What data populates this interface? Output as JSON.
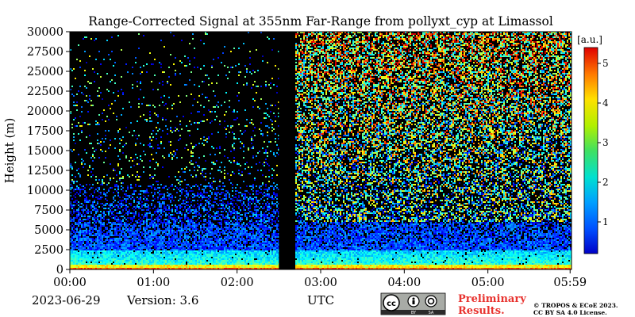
{
  "chart_data": {
    "type": "heatmap",
    "title": "Range-Corrected Signal at 355nm Far-Range from pollyxt_cyp at Limassol",
    "xlabel": "UTC",
    "ylabel": "Height (m)",
    "x_ticks": [
      "00:00",
      "01:00",
      "02:00",
      "03:00",
      "04:00",
      "05:00",
      "05:59"
    ],
    "y_ticks": [
      "0",
      "2500",
      "5000",
      "7500",
      "10000",
      "12500",
      "15000",
      "17500",
      "20000",
      "22500",
      "25000",
      "27500",
      "30000"
    ],
    "xlim_hours": [
      0,
      6.0
    ],
    "ylim": [
      0,
      30000
    ],
    "no_data_gap_hours": [
      2.5,
      2.68
    ],
    "colorbar": {
      "label": "[a.u.]",
      "ticks": [
        "1",
        "2",
        "3",
        "4",
        "5"
      ],
      "range": [
        0.2,
        5.4
      ],
      "colormap": "jet"
    }
  },
  "footer": {
    "date": "2023-06-29",
    "version": "Version: 3.6",
    "license_badge": {
      "cc": "cc",
      "by": "BY",
      "sa": "SA"
    },
    "preliminary_line1": "Preliminary",
    "preliminary_line2": "Results.",
    "copyright_line1": "© TROPOS & ECoE 2023.",
    "copyright_line2": "CC BY SA 4.0 License."
  },
  "colors": {
    "background_plot": "#000000",
    "preliminary": "#e8322e",
    "badge_bg": "#a8aba6",
    "badge_dark": "#2b2b2b"
  }
}
